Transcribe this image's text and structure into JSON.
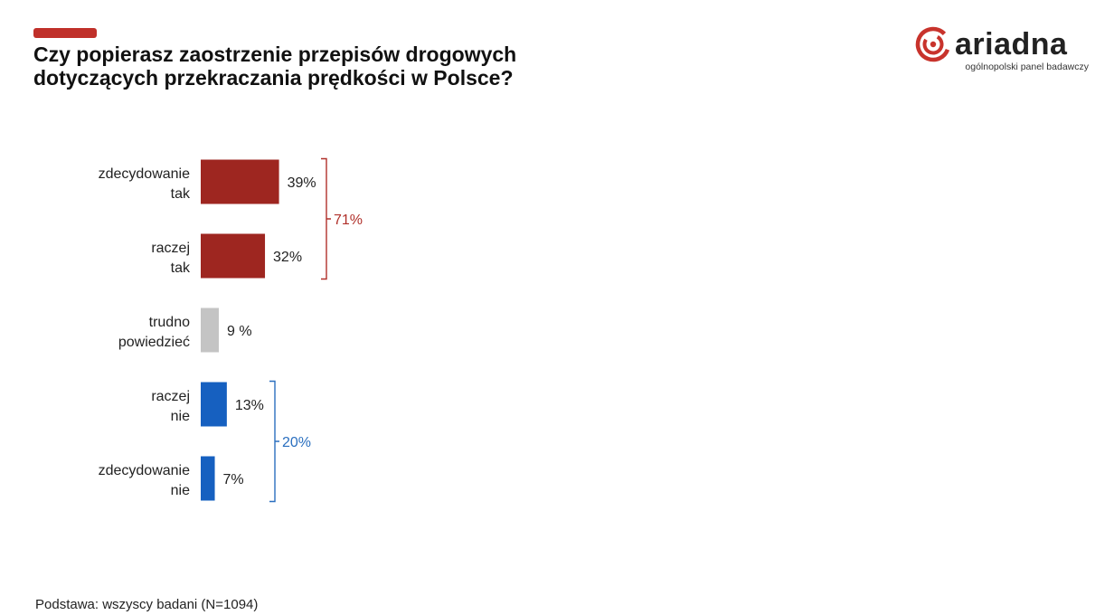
{
  "header": {
    "title_line1": "Czy popierasz zaostrzenie przepisów drogowych",
    "title_line2": "dotyczących przekraczania prędkości w Polsce?",
    "accent_color": "#c0302a"
  },
  "logo": {
    "wordmark": "ariadna",
    "tagline": "ogólnopolski panel badawczy",
    "icon": "ariadna-spiral-icon"
  },
  "chart_data": {
    "type": "bar",
    "orientation": "horizontal",
    "categories": [
      [
        "zdecydowanie",
        "tak"
      ],
      [
        "raczej",
        "tak"
      ],
      [
        "trudno",
        "powiedzieć"
      ],
      [
        "raczej",
        "nie"
      ],
      [
        "zdecydowanie",
        "nie"
      ]
    ],
    "values": [
      39,
      32,
      9,
      13,
      7
    ],
    "value_labels": [
      "39%",
      "32%",
      "9 %",
      "13%",
      "7%"
    ],
    "colors": [
      "#9e2620",
      "#9e2620",
      "#c4c4c4",
      "#1660c0",
      "#1660c0"
    ],
    "groups": [
      {
        "label": "71%",
        "from": 0,
        "to": 1,
        "color": "#b0302a"
      },
      {
        "label": "20%",
        "from": 3,
        "to": 4,
        "color": "#2a6fbf"
      }
    ],
    "unit": "%"
  },
  "footnote": "Podstawa: wszyscy badani  (N=1094)"
}
